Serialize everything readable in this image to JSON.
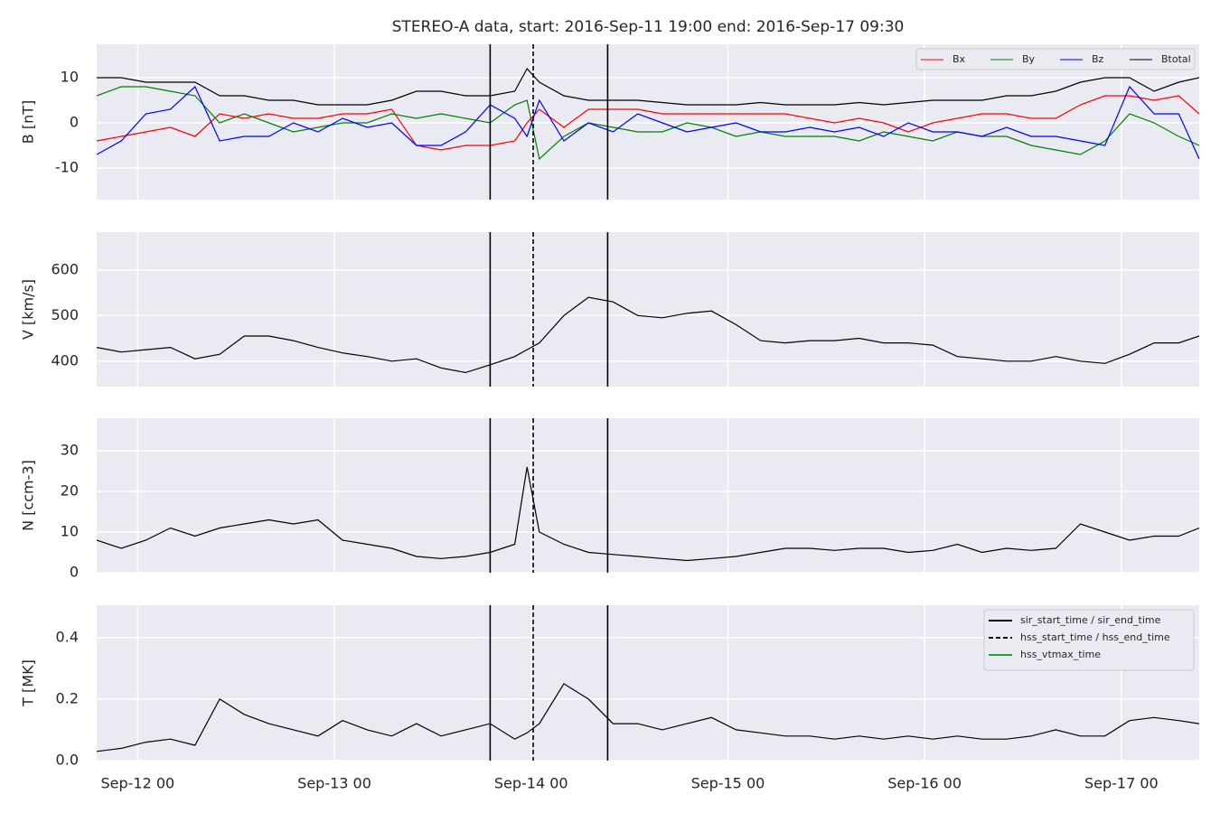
{
  "chart_data": [
    {
      "type": "line",
      "title": "STEREO-A data, start: 2016-Sep-11 19:00  end: 2016-Sep-17 09:30",
      "ylabel": "B [nT]",
      "x": [
        "2016-09-11T19:00",
        "2016-09-11T22:00",
        "2016-09-12T01:00",
        "2016-09-12T04:00",
        "2016-09-12T07:00",
        "2016-09-12T10:00",
        "2016-09-12T13:00",
        "2016-09-12T16:00",
        "2016-09-12T19:00",
        "2016-09-12T22:00",
        "2016-09-13T01:00",
        "2016-09-13T04:00",
        "2016-09-13T07:00",
        "2016-09-13T10:00",
        "2016-09-13T13:00",
        "2016-09-13T16:00",
        "2016-09-13T19:00",
        "2016-09-13T22:00",
        "2016-09-13T23:30",
        "2016-09-14T01:00",
        "2016-09-14T04:00",
        "2016-09-14T07:00",
        "2016-09-14T10:00",
        "2016-09-14T13:00",
        "2016-09-14T16:00",
        "2016-09-14T19:00",
        "2016-09-14T22:00",
        "2016-09-15T01:00",
        "2016-09-15T04:00",
        "2016-09-15T07:00",
        "2016-09-15T10:00",
        "2016-09-15T13:00",
        "2016-09-15T16:00",
        "2016-09-15T19:00",
        "2016-09-15T22:00",
        "2016-09-16T01:00",
        "2016-09-16T04:00",
        "2016-09-16T07:00",
        "2016-09-16T10:00",
        "2016-09-16T13:00",
        "2016-09-16T16:00",
        "2016-09-16T19:00",
        "2016-09-16T22:00",
        "2016-09-17T01:00",
        "2016-09-17T04:00",
        "2016-09-17T07:00",
        "2016-09-17T09:30"
      ],
      "series": [
        {
          "name": "Bx",
          "color": "#ff0000",
          "values": [
            -4,
            -3,
            -2,
            -1,
            -3,
            2,
            1,
            2,
            1,
            1,
            2,
            2,
            3,
            -5,
            -6,
            -5,
            -5,
            -4,
            0,
            3,
            -1,
            3,
            3,
            3,
            2,
            2,
            2,
            2,
            2,
            2,
            1,
            0,
            1,
            0,
            -2,
            0,
            1,
            2,
            2,
            1,
            1,
            4,
            6,
            6,
            5,
            6,
            2
          ]
        },
        {
          "name": "By",
          "color": "#008000",
          "values": [
            6,
            8,
            8,
            7,
            6,
            0,
            2,
            0,
            -2,
            -1,
            0,
            0,
            2,
            1,
            2,
            1,
            0,
            4,
            5,
            -8,
            -3,
            0,
            -1,
            -2,
            -2,
            0,
            -1,
            -3,
            -2,
            -3,
            -3,
            -3,
            -4,
            -2,
            -3,
            -4,
            -2,
            -3,
            -3,
            -5,
            -6,
            -7,
            -4,
            2,
            0,
            -3,
            -5
          ]
        },
        {
          "name": "Bz",
          "color": "#0000ff",
          "values": [
            -7,
            -4,
            2,
            3,
            8,
            -4,
            -3,
            -3,
            0,
            -2,
            1,
            -1,
            0,
            -5,
            -5,
            -2,
            4,
            1,
            -3,
            5,
            -4,
            0,
            -2,
            2,
            0,
            -2,
            -1,
            0,
            -2,
            -2,
            -1,
            -2,
            -1,
            -3,
            0,
            -2,
            -2,
            -3,
            -1,
            -3,
            -3,
            -4,
            -5,
            8,
            2,
            2,
            -8
          ]
        },
        {
          "name": "Btotal",
          "color": "#000000",
          "values": [
            10,
            10,
            9,
            9,
            9,
            6,
            6,
            5,
            5,
            4,
            4,
            4,
            5,
            7,
            7,
            6,
            6,
            7,
            12,
            9,
            6,
            5,
            5,
            5,
            4.5,
            4,
            4,
            4,
            4.5,
            4,
            4,
            4,
            4.5,
            4,
            4.5,
            5,
            5,
            5,
            6,
            6,
            7,
            9,
            10,
            10,
            7,
            9,
            10
          ]
        }
      ],
      "xlim": [
        "2016-09-11T19:00",
        "2016-09-17T09:30"
      ],
      "xticks": [
        "2016-09-12T00:00",
        "2016-09-13T00:00",
        "2016-09-14T00:00",
        "2016-09-15T00:00",
        "2016-09-16T00:00",
        "2016-09-17T00:00"
      ],
      "ylim": [
        -17,
        17.4
      ],
      "yticks": [
        -10,
        0,
        10
      ],
      "grid": true,
      "legend": "upper right"
    },
    {
      "type": "line",
      "ylabel": "V [km/s]",
      "x": [
        "2016-09-11T19:00",
        "2016-09-11T22:00",
        "2016-09-12T01:00",
        "2016-09-12T04:00",
        "2016-09-12T07:00",
        "2016-09-12T10:00",
        "2016-09-12T13:00",
        "2016-09-12T16:00",
        "2016-09-12T19:00",
        "2016-09-12T22:00",
        "2016-09-13T01:00",
        "2016-09-13T04:00",
        "2016-09-13T07:00",
        "2016-09-13T10:00",
        "2016-09-13T13:00",
        "2016-09-13T16:00",
        "2016-09-13T19:00",
        "2016-09-13T22:00",
        "2016-09-13T23:30",
        "2016-09-14T01:00",
        "2016-09-14T04:00",
        "2016-09-14T07:00",
        "2016-09-14T10:00",
        "2016-09-14T13:00",
        "2016-09-14T16:00",
        "2016-09-14T19:00",
        "2016-09-14T22:00",
        "2016-09-15T01:00",
        "2016-09-15T04:00",
        "2016-09-15T07:00",
        "2016-09-15T10:00",
        "2016-09-15T13:00",
        "2016-09-15T16:00",
        "2016-09-15T19:00",
        "2016-09-15T22:00",
        "2016-09-16T01:00",
        "2016-09-16T04:00",
        "2016-09-16T07:00",
        "2016-09-16T10:00",
        "2016-09-16T13:00",
        "2016-09-16T16:00",
        "2016-09-16T19:00",
        "2016-09-16T22:00",
        "2016-09-17T01:00",
        "2016-09-17T04:00",
        "2016-09-17T07:00",
        "2016-09-17T09:30"
      ],
      "values": [
        430,
        420,
        425,
        430,
        405,
        415,
        455,
        455,
        445,
        430,
        418,
        410,
        400,
        405,
        385,
        375,
        392,
        410,
        425,
        440,
        500,
        540,
        530,
        500,
        495,
        505,
        510,
        480,
        445,
        440,
        445,
        445,
        450,
        440,
        440,
        435,
        410,
        405,
        400,
        400,
        410,
        400,
        395,
        415,
        440,
        440,
        455
      ],
      "color": "#000000",
      "xlim": [
        "2016-09-11T19:00",
        "2016-09-17T09:30"
      ],
      "xticks": [
        "2016-09-12T00:00",
        "2016-09-13T00:00",
        "2016-09-14T00:00",
        "2016-09-15T00:00",
        "2016-09-16T00:00",
        "2016-09-17T00:00"
      ],
      "ylim": [
        344,
        683
      ],
      "yticks": [
        400,
        500,
        600
      ],
      "grid": true
    },
    {
      "type": "line",
      "ylabel": "N [ccm-3]",
      "x": [
        "2016-09-11T19:00",
        "2016-09-11T22:00",
        "2016-09-12T01:00",
        "2016-09-12T04:00",
        "2016-09-12T07:00",
        "2016-09-12T10:00",
        "2016-09-12T13:00",
        "2016-09-12T16:00",
        "2016-09-12T19:00",
        "2016-09-12T22:00",
        "2016-09-13T01:00",
        "2016-09-13T04:00",
        "2016-09-13T07:00",
        "2016-09-13T10:00",
        "2016-09-13T13:00",
        "2016-09-13T16:00",
        "2016-09-13T19:00",
        "2016-09-13T22:00",
        "2016-09-13T23:30",
        "2016-09-14T01:00",
        "2016-09-14T04:00",
        "2016-09-14T07:00",
        "2016-09-14T10:00",
        "2016-09-14T13:00",
        "2016-09-14T16:00",
        "2016-09-14T19:00",
        "2016-09-14T22:00",
        "2016-09-15T01:00",
        "2016-09-15T04:00",
        "2016-09-15T07:00",
        "2016-09-15T10:00",
        "2016-09-15T13:00",
        "2016-09-15T16:00",
        "2016-09-15T19:00",
        "2016-09-15T22:00",
        "2016-09-16T01:00",
        "2016-09-16T04:00",
        "2016-09-16T07:00",
        "2016-09-16T10:00",
        "2016-09-16T13:00",
        "2016-09-16T16:00",
        "2016-09-16T19:00",
        "2016-09-16T22:00",
        "2016-09-17T01:00",
        "2016-09-17T04:00",
        "2016-09-17T07:00",
        "2016-09-17T09:30"
      ],
      "values": [
        8,
        6,
        8,
        11,
        9,
        11,
        12,
        13,
        12,
        13,
        8,
        7,
        6,
        4,
        3.5,
        4,
        5,
        7,
        26,
        10,
        7,
        5,
        4.5,
        4,
        3.5,
        3,
        3.5,
        4,
        5,
        6,
        6,
        5.5,
        6,
        6,
        5,
        5.5,
        7,
        5,
        6,
        5.5,
        6,
        12,
        10,
        8,
        9,
        9,
        11
      ],
      "color": "#000000",
      "xlim": [
        "2016-09-11T19:00",
        "2016-09-17T09:30"
      ],
      "xticks": [
        "2016-09-12T00:00",
        "2016-09-13T00:00",
        "2016-09-14T00:00",
        "2016-09-15T00:00",
        "2016-09-16T00:00",
        "2016-09-17T00:00"
      ],
      "ylim": [
        0,
        38
      ],
      "yticks": [
        0,
        10,
        20,
        30
      ],
      "grid": true
    },
    {
      "type": "line",
      "ylabel": "T [MK]",
      "x": [
        "2016-09-11T19:00",
        "2016-09-11T22:00",
        "2016-09-12T01:00",
        "2016-09-12T04:00",
        "2016-09-12T07:00",
        "2016-09-12T10:00",
        "2016-09-12T13:00",
        "2016-09-12T16:00",
        "2016-09-12T19:00",
        "2016-09-12T22:00",
        "2016-09-13T01:00",
        "2016-09-13T04:00",
        "2016-09-13T07:00",
        "2016-09-13T10:00",
        "2016-09-13T13:00",
        "2016-09-13T16:00",
        "2016-09-13T19:00",
        "2016-09-13T22:00",
        "2016-09-13T23:30",
        "2016-09-14T01:00",
        "2016-09-14T04:00",
        "2016-09-14T07:00",
        "2016-09-14T10:00",
        "2016-09-14T13:00",
        "2016-09-14T16:00",
        "2016-09-14T19:00",
        "2016-09-14T22:00",
        "2016-09-15T01:00",
        "2016-09-15T04:00",
        "2016-09-15T07:00",
        "2016-09-15T10:00",
        "2016-09-15T13:00",
        "2016-09-15T16:00",
        "2016-09-15T19:00",
        "2016-09-15T22:00",
        "2016-09-16T01:00",
        "2016-09-16T04:00",
        "2016-09-16T07:00",
        "2016-09-16T10:00",
        "2016-09-16T13:00",
        "2016-09-16T16:00",
        "2016-09-16T19:00",
        "2016-09-16T22:00",
        "2016-09-17T01:00",
        "2016-09-17T04:00",
        "2016-09-17T07:00",
        "2016-09-17T09:30"
      ],
      "values": [
        0.03,
        0.04,
        0.06,
        0.07,
        0.05,
        0.2,
        0.15,
        0.12,
        0.1,
        0.08,
        0.13,
        0.1,
        0.08,
        0.12,
        0.08,
        0.1,
        0.12,
        0.07,
        0.09,
        0.12,
        0.25,
        0.2,
        0.12,
        0.12,
        0.1,
        0.12,
        0.14,
        0.1,
        0.09,
        0.08,
        0.08,
        0.07,
        0.08,
        0.07,
        0.08,
        0.07,
        0.08,
        0.07,
        0.07,
        0.08,
        0.1,
        0.08,
        0.08,
        0.13,
        0.14,
        0.13,
        0.12
      ],
      "color": "#000000",
      "xlim": [
        "2016-09-11T19:00",
        "2016-09-17T09:30"
      ],
      "xticks": [
        {
          "value": "2016-09-12T00:00",
          "label": "Sep-12 00"
        },
        {
          "value": "2016-09-13T00:00",
          "label": "Sep-13 00"
        },
        {
          "value": "2016-09-14T00:00",
          "label": "Sep-14 00"
        },
        {
          "value": "2016-09-15T00:00",
          "label": "Sep-15 00"
        },
        {
          "value": "2016-09-16T00:00",
          "label": "Sep-16 00"
        },
        {
          "value": "2016-09-17T00:00",
          "label": "Sep-17 00"
        }
      ],
      "ylim": [
        0,
        0.505
      ],
      "yticks": [
        {
          "value": 0,
          "label": "0.0"
        },
        0.2,
        0.4
      ],
      "grid": true,
      "legend": "upper right",
      "events": [
        {
          "name": "sir_start_time / sir_end_time",
          "color": "#000000",
          "style": "solid",
          "times": [
            "2016-09-13T19:00",
            "2016-09-14T09:20"
          ]
        },
        {
          "name": "hss_start_time / hss_end_time",
          "color": "#000000",
          "style": "dashed",
          "times": [
            "2016-09-14T00:15"
          ]
        },
        {
          "name": "hss_vtmax_time",
          "color": "#2ca02c",
          "style": "solid",
          "times": []
        }
      ]
    }
  ]
}
